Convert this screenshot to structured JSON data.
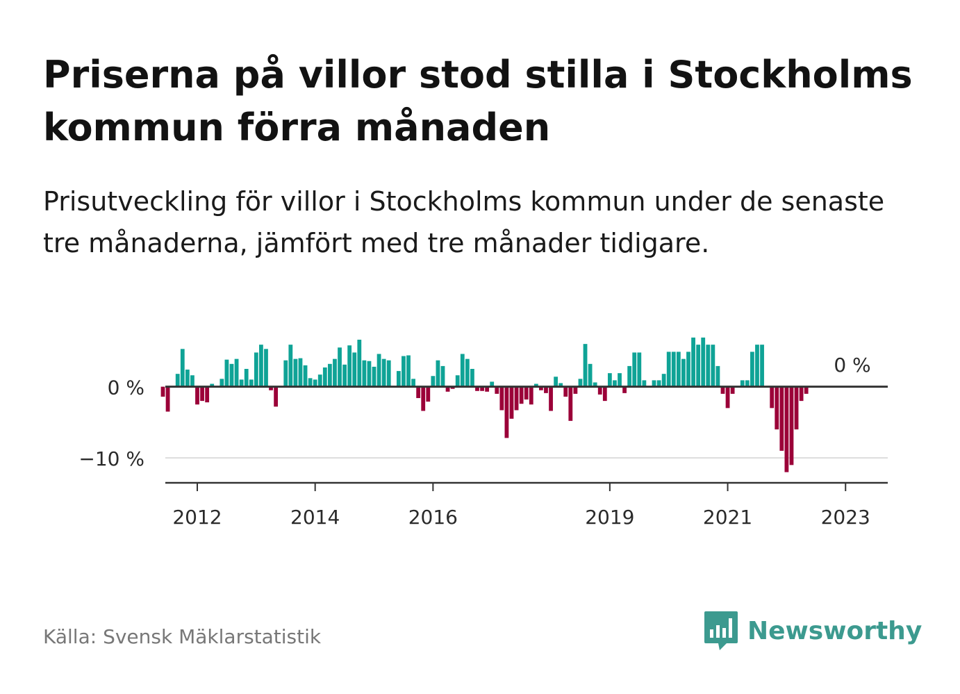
{
  "title": "Priserna på villor stod stilla i Stockholms kommun förra månaden",
  "subtitle": "Prisutveckling för villor i Stockholms kommun under de senaste tre månaderna, jämfört med tre månader tidigare.",
  "source": "Källa: Svensk Mäklarstatistik",
  "brand": "Newsworthy",
  "colors": {
    "positive": "#0fa396",
    "negative": "#9b0038",
    "brand": "#3c9a8f"
  },
  "chart_data": {
    "type": "bar",
    "x_start": "2011-06",
    "frequency": "monthly",
    "ylim": [
      -13.5,
      6.5
    ],
    "y_ticks": [
      {
        "value": 0,
        "label": "0 %"
      },
      {
        "value": -10,
        "label": "−10 %"
      }
    ],
    "x_ticks": [
      {
        "month": "2012-01",
        "label": "2012"
      },
      {
        "month": "2014-01",
        "label": "2014"
      },
      {
        "month": "2016-01",
        "label": "2016"
      },
      {
        "month": "2019-01",
        "label": "2019"
      },
      {
        "month": "2021-01",
        "label": "2021"
      },
      {
        "month": "2023-01",
        "label": "2023"
      }
    ],
    "annotation": "0 %",
    "values": [
      -1.4,
      -3.5,
      0,
      1.8,
      5.3,
      2.4,
      1.6,
      -2.5,
      -2.0,
      -2.2,
      0.4,
      0,
      1.1,
      3.8,
      3.2,
      3.9,
      1.0,
      2.5,
      1.0,
      4.8,
      5.9,
      5.3,
      -0.5,
      -2.8,
      0,
      3.7,
      5.9,
      3.9,
      4.0,
      3.0,
      1.2,
      1.0,
      1.7,
      2.7,
      3.2,
      3.9,
      5.5,
      3.1,
      5.8,
      4.8,
      6.6,
      3.7,
      3.6,
      2.8,
      4.6,
      3.9,
      3.7,
      0,
      2.2,
      4.3,
      4.4,
      1.1,
      -1.6,
      -3.4,
      -2.1,
      1.5,
      3.7,
      2.9,
      -0.7,
      -0.3,
      1.6,
      4.6,
      3.9,
      2.5,
      -0.6,
      -0.6,
      -0.7,
      0.7,
      -1.0,
      -3.3,
      -7.2,
      -4.5,
      -3.3,
      -2.4,
      -1.8,
      -2.5,
      0.4,
      -0.5,
      -0.9,
      -3.4,
      1.4,
      0.5,
      -1.4,
      -4.8,
      -1.0,
      1.1,
      6.0,
      3.2,
      0.6,
      -1.1,
      -2.0,
      1.9,
      0.9,
      1.9,
      -0.9,
      2.9,
      4.8,
      4.8,
      0.9,
      0,
      0.9,
      0.9,
      1.8,
      4.9,
      4.9,
      4.9,
      3.9,
      4.9,
      6.9,
      5.9,
      6.9,
      5.9,
      5.9,
      2.9,
      -1.0,
      -3.0,
      -1.0,
      0,
      0.9,
      0.9,
      4.9,
      5.9,
      5.9,
      0,
      -3.0,
      -6.0,
      -9.0,
      -12.0,
      -11.0,
      -6.0,
      -2.0,
      -1.0,
      0
    ]
  }
}
